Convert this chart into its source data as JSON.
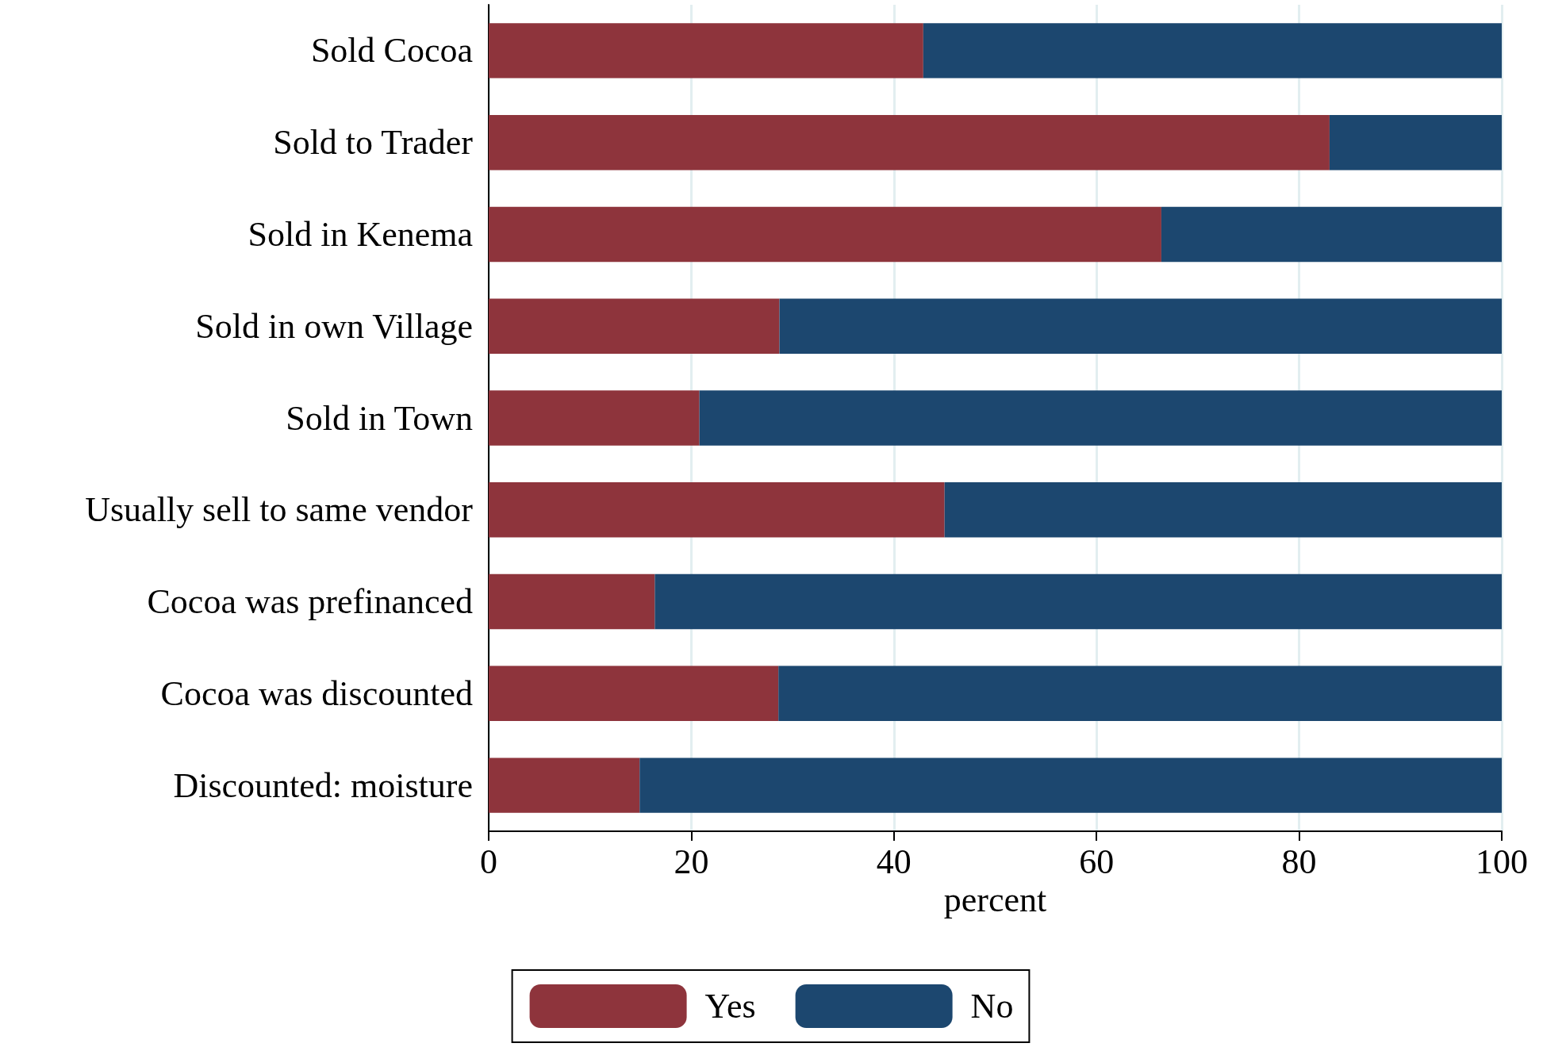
{
  "chart_data": {
    "type": "bar",
    "orientation": "horizontal",
    "stacked": true,
    "xlabel": "percent",
    "categories": [
      "Sold Cocoa",
      "Sold to Trader",
      "Sold in Kenema",
      "Sold in own Village",
      "Sold in Town",
      "Usually sell to same vendor",
      "Cocoa was prefinanced",
      "Cocoa was discounted",
      "Discounted: moisture"
    ],
    "series": [
      {
        "name": "Yes",
        "color": "#8e343c",
        "values": [
          42.9,
          83.0,
          66.4,
          28.7,
          20.8,
          45.0,
          16.4,
          28.6,
          14.9
        ]
      },
      {
        "name": "No",
        "color": "#1c476f",
        "values": [
          57.1,
          17.0,
          33.6,
          71.3,
          79.2,
          55.0,
          83.6,
          71.4,
          85.1
        ]
      }
    ],
    "xlim": [
      0,
      100
    ],
    "xticks": [
      0,
      20,
      40,
      60,
      80,
      100
    ],
    "grid": "x",
    "legend": "bottom"
  }
}
